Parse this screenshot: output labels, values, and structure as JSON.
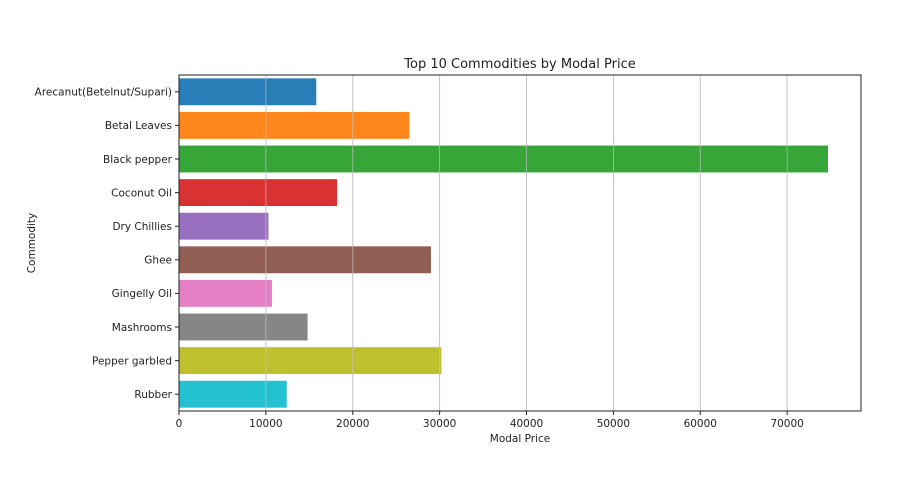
{
  "chart_data": {
    "type": "bar",
    "orientation": "horizontal",
    "title": "Top 10 Commodities by Modal Price",
    "xlabel": "Modal Price",
    "ylabel": "Commodity",
    "categories": [
      "Arecanut(Betelnut/Supari)",
      "Betal Leaves",
      "Black pepper",
      "Coconut Oil",
      "Dry Chillies",
      "Ghee",
      "Gingelly Oil",
      "Mashrooms",
      "Pepper garbled",
      "Rubber"
    ],
    "values": [
      15800,
      26500,
      74700,
      18200,
      10300,
      29000,
      10700,
      14800,
      30200,
      12400
    ],
    "colors": [
      "#1f77b4",
      "#ff7f0e",
      "#2ca02c",
      "#d62728",
      "#9467bd",
      "#8c564b",
      "#e377c2",
      "#7f7f7f",
      "#bcbd22",
      "#17becf"
    ],
    "xlim": [
      0,
      78500
    ],
    "xticks": [
      0,
      10000,
      20000,
      30000,
      40000,
      50000,
      60000,
      70000
    ],
    "xtick_labels": [
      "0",
      "10000",
      "20000",
      "30000",
      "40000",
      "50000",
      "60000",
      "70000"
    ],
    "grid": "vertical"
  }
}
